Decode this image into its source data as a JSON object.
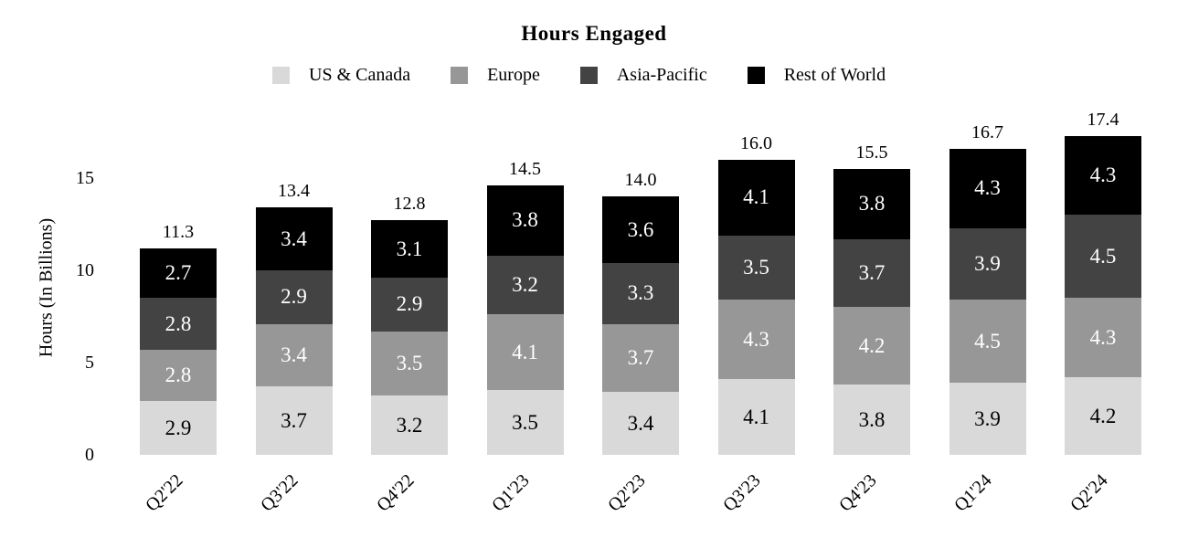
{
  "chart_data": {
    "type": "bar",
    "stacked": true,
    "title": "Hours Engaged",
    "xlabel": "",
    "ylabel": "Hours (In Billions)",
    "legend_position": "top",
    "grid": false,
    "ylim": [
      0,
      18
    ],
    "yticks": [
      "0",
      "5",
      "10",
      "15"
    ],
    "categories": [
      "Q2'22",
      "Q3'22",
      "Q4'22",
      "Q1'23",
      "Q2'23",
      "Q3'23",
      "Q4'23",
      "Q1'24",
      "Q2'24"
    ],
    "series": [
      {
        "name": "US & Canada",
        "color": "#D9D9D9",
        "label_color": "#000000",
        "values": [
          "2.9",
          "3.7",
          "3.2",
          "3.5",
          "3.4",
          "4.1",
          "3.8",
          "3.9",
          "4.2"
        ]
      },
      {
        "name": "Europe",
        "color": "#979797",
        "label_color": "#FFFFFF",
        "values": [
          "2.8",
          "3.4",
          "3.5",
          "4.1",
          "3.7",
          "4.3",
          "4.2",
          "4.5",
          "4.3"
        ]
      },
      {
        "name": "Asia-Pacific",
        "color": "#434343",
        "label_color": "#FFFFFF",
        "values": [
          "2.8",
          "2.9",
          "2.9",
          "3.2",
          "3.3",
          "3.5",
          "3.7",
          "3.9",
          "4.5"
        ]
      },
      {
        "name": "Rest of World",
        "color": "#000000",
        "label_color": "#FFFFFF",
        "values": [
          "2.7",
          "3.4",
          "3.1",
          "3.8",
          "3.6",
          "4.1",
          "3.8",
          "4.3",
          "4.3"
        ]
      }
    ],
    "totals": [
      "11.3",
      "13.4",
      "12.8",
      "14.5",
      "14.0",
      "16.0",
      "15.5",
      "16.7",
      "17.4"
    ]
  }
}
